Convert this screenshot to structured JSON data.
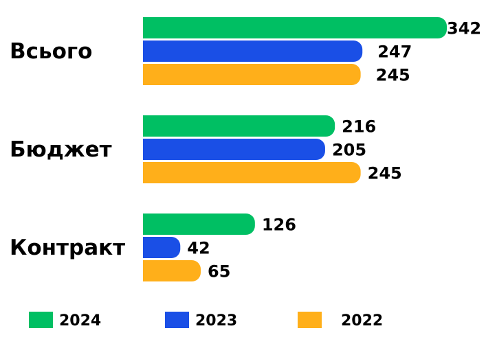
{
  "chart_data": {
    "type": "bar",
    "orientation": "horizontal",
    "categories": [
      "Всього",
      "Бюджет",
      "Контракт"
    ],
    "series": [
      {
        "name": "2024",
        "color": "#00bf63",
        "values": [
          342,
          216,
          126
        ]
      },
      {
        "name": "2023",
        "color": "#1a4fe6",
        "values": [
          247,
          205,
          42
        ]
      },
      {
        "name": "2022",
        "color": "#ffaf1a",
        "values": [
          245,
          245,
          65
        ]
      }
    ]
  }
}
